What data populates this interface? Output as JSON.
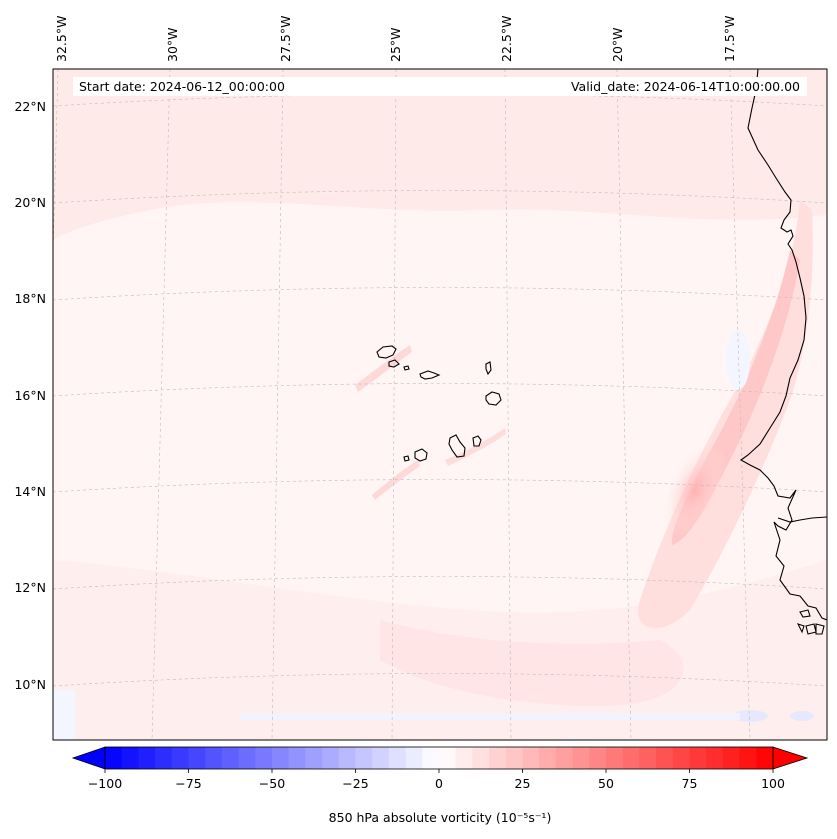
{
  "header": {
    "start_date": "Start date: 2024-06-12_00:00:00",
    "valid_date": "Valid_date: 2024-06-14T10:00:00.00"
  },
  "longitude_labels": [
    "32.5°W",
    "30°W",
    "27.5°W",
    "25°W",
    "22.5°W",
    "20°W",
    "17.5°W"
  ],
  "latitude_labels": [
    "22°N",
    "20°N",
    "18°N",
    "16°N",
    "14°N",
    "12°N",
    "10°N"
  ],
  "colorbar": {
    "label": "850 hPa absolute vorticity (10⁻⁵s⁻¹)",
    "ticks": [
      "−100",
      "−75",
      "−50",
      "−25",
      "0",
      "25",
      "50",
      "75",
      "100"
    ],
    "min": -100,
    "max": 100,
    "low_color": "#0000ff",
    "mid_color": "#ffffff",
    "high_color": "#ff0000"
  },
  "colors": {
    "coastline": "#000000",
    "gridline": "#bbbbbb",
    "field_background": "#fff6f6"
  }
}
